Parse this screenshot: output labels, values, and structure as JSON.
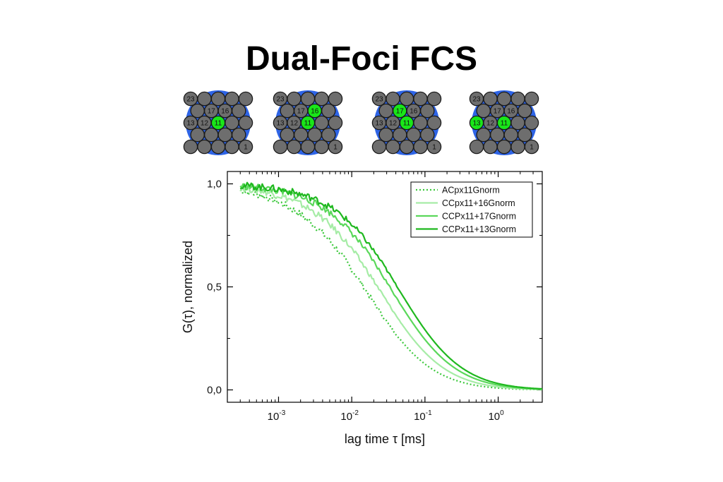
{
  "title": "Dual-Foci FCS",
  "detector_arrays": [
    {
      "labels": {
        "tl": "23",
        "a": "17",
        "b": "16",
        "c": "13",
        "d": "12",
        "e": "11",
        "br": "1"
      },
      "highlighted": [
        "11"
      ]
    },
    {
      "labels": {
        "tl": "23",
        "a": "17",
        "b": "16",
        "c": "13",
        "d": "12",
        "e": "11",
        "br": "1"
      },
      "highlighted": [
        "16",
        "11"
      ]
    },
    {
      "labels": {
        "tl": "23",
        "a": "17",
        "b": "16",
        "c": "13",
        "d": "12",
        "e": "11",
        "br": "1"
      },
      "highlighted": [
        "17",
        "11"
      ]
    },
    {
      "labels": {
        "tl": "23",
        "a": "17",
        "b": "16",
        "c": "13",
        "d": "12",
        "e": "11",
        "br": "1"
      },
      "highlighted": [
        "13",
        "11"
      ]
    }
  ],
  "colors": {
    "pixel": "#6e6e6e",
    "pixel_on": "#19e619",
    "array_bg": "#2e64e6",
    "series": [
      "#3cc83c",
      "#a6eca6",
      "#5ad85a",
      "#1fb81f"
    ]
  },
  "chart_data": {
    "type": "line",
    "xlabel": "lag time τ [ms]",
    "ylabel": "G(τ), normalized",
    "xscale": "log",
    "xlim": [
      0.0002,
      4
    ],
    "ylim": [
      -0.06,
      1.06
    ],
    "xticks": [
      {
        "value": 0.001,
        "base": "10",
        "exp": "-3"
      },
      {
        "value": 0.01,
        "base": "10",
        "exp": "-2"
      },
      {
        "value": 0.1,
        "base": "10",
        "exp": "-1"
      },
      {
        "value": 1,
        "base": "10",
        "exp": "0"
      }
    ],
    "yticks": [
      {
        "value": 0,
        "label": "0,0"
      },
      {
        "value": 0.5,
        "label": "0,5"
      },
      {
        "value": 1,
        "label": "1,0"
      }
    ],
    "legend_position": "top-right",
    "series": [
      {
        "name": "ACpx11Gnorm",
        "style": "dotted",
        "tau0": 0.018,
        "shift": 0.06,
        "fast_frac": 0.1,
        "tau_fast": 0.0015
      },
      {
        "name": "CCpx11+16Gnorm",
        "style": "solid",
        "tau0": 0.026,
        "shift": 0.04,
        "fast_frac": 0.06,
        "tau_fast": 0.002
      },
      {
        "name": "CCPx11+17Gnorm",
        "style": "solid",
        "tau0": 0.036,
        "shift": 0.02,
        "fast_frac": 0.03,
        "tau_fast": 0.003
      },
      {
        "name": "CCPx11+13Gnorm",
        "style": "solid",
        "tau0": 0.045,
        "shift": 0.0,
        "fast_frac": 0.02,
        "tau_fast": 0.003
      }
    ]
  }
}
